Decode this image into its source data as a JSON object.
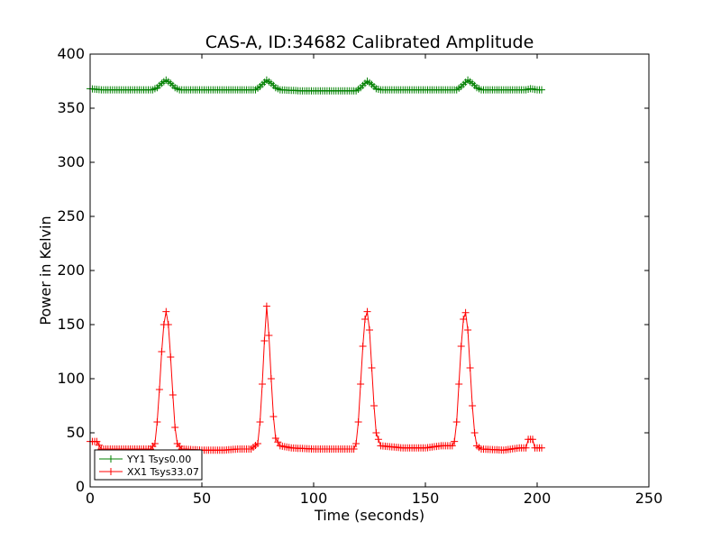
{
  "chart_data": {
    "type": "line",
    "title": "CAS-A, ID:34682 Calibrated Amplitude",
    "xlabel": "Time (seconds)",
    "ylabel": "Power in Kelvin",
    "xlim": [
      0,
      250
    ],
    "ylim": [
      0,
      400
    ],
    "xticks": [
      0,
      50,
      100,
      150,
      200,
      250
    ],
    "yticks": [
      0,
      50,
      100,
      150,
      200,
      250,
      300,
      350,
      400
    ],
    "grid": false,
    "legend_position": "bottom-left",
    "series": [
      {
        "name": "YY1 Tsys0.00",
        "color": "#008000",
        "marker": "plus",
        "baseline": 367,
        "points": [
          [
            0,
            368
          ],
          [
            5,
            367
          ],
          [
            10,
            367
          ],
          [
            20,
            367
          ],
          [
            28,
            367
          ],
          [
            30,
            369
          ],
          [
            32,
            373
          ],
          [
            34,
            376
          ],
          [
            36,
            373
          ],
          [
            38,
            369
          ],
          [
            40,
            367
          ],
          [
            50,
            367
          ],
          [
            60,
            367
          ],
          [
            70,
            367
          ],
          [
            74,
            367
          ],
          [
            76,
            370
          ],
          [
            78,
            374
          ],
          [
            79,
            376
          ],
          [
            81,
            373
          ],
          [
            83,
            369
          ],
          [
            85,
            367
          ],
          [
            95,
            366
          ],
          [
            105,
            366
          ],
          [
            115,
            366
          ],
          [
            119,
            366
          ],
          [
            121,
            369
          ],
          [
            123,
            373
          ],
          [
            124,
            375
          ],
          [
            126,
            372
          ],
          [
            128,
            368
          ],
          [
            130,
            367
          ],
          [
            140,
            367
          ],
          [
            150,
            367
          ],
          [
            160,
            367
          ],
          [
            164,
            367
          ],
          [
            166,
            370
          ],
          [
            168,
            374
          ],
          [
            169,
            376
          ],
          [
            171,
            373
          ],
          [
            173,
            369
          ],
          [
            175,
            367
          ],
          [
            185,
            367
          ],
          [
            195,
            367
          ],
          [
            197,
            368
          ],
          [
            200,
            367
          ],
          [
            202,
            367
          ]
        ]
      },
      {
        "name": "XX1 Tsys33.07",
        "color": "#ff0000",
        "marker": "plus",
        "baseline": 35,
        "points": [
          [
            0,
            42
          ],
          [
            3,
            42
          ],
          [
            5,
            35
          ],
          [
            10,
            35
          ],
          [
            20,
            35
          ],
          [
            27,
            35
          ],
          [
            29,
            40
          ],
          [
            30,
            60
          ],
          [
            31,
            90
          ],
          [
            32,
            125
          ],
          [
            33,
            150
          ],
          [
            34,
            162
          ],
          [
            35,
            150
          ],
          [
            36,
            120
          ],
          [
            37,
            85
          ],
          [
            38,
            55
          ],
          [
            39,
            40
          ],
          [
            41,
            35
          ],
          [
            50,
            34
          ],
          [
            60,
            34
          ],
          [
            66,
            35
          ],
          [
            72,
            35
          ],
          [
            75,
            40
          ],
          [
            76,
            60
          ],
          [
            77,
            95
          ],
          [
            78,
            135
          ],
          [
            79,
            167
          ],
          [
            80,
            140
          ],
          [
            81,
            100
          ],
          [
            82,
            65
          ],
          [
            83,
            45
          ],
          [
            85,
            38
          ],
          [
            90,
            36
          ],
          [
            100,
            35
          ],
          [
            110,
            35
          ],
          [
            118,
            35
          ],
          [
            119,
            40
          ],
          [
            120,
            60
          ],
          [
            121,
            95
          ],
          [
            122,
            130
          ],
          [
            123,
            155
          ],
          [
            124,
            162
          ],
          [
            125,
            145
          ],
          [
            126,
            110
          ],
          [
            127,
            75
          ],
          [
            128,
            50
          ],
          [
            130,
            38
          ],
          [
            140,
            36
          ],
          [
            150,
            36
          ],
          [
            157,
            38
          ],
          [
            162,
            38
          ],
          [
            163,
            42
          ],
          [
            164,
            60
          ],
          [
            165,
            95
          ],
          [
            166,
            130
          ],
          [
            167,
            155
          ],
          [
            168,
            161
          ],
          [
            169,
            145
          ],
          [
            170,
            110
          ],
          [
            171,
            75
          ],
          [
            172,
            50
          ],
          [
            173,
            38
          ],
          [
            175,
            35
          ],
          [
            185,
            34
          ],
          [
            192,
            36
          ],
          [
            195,
            36
          ],
          [
            196,
            44
          ],
          [
            198,
            44
          ],
          [
            199,
            36
          ],
          [
            202,
            36
          ]
        ]
      }
    ]
  }
}
